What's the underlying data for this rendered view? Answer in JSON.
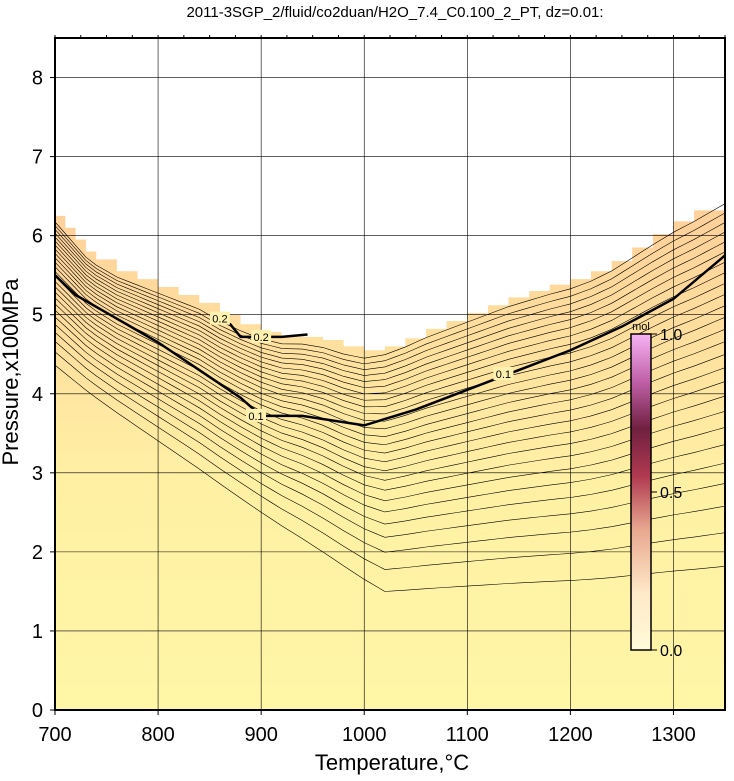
{
  "title": "2011-3SGP_2/fluid/co2duan/H2O_7.4_C0.100_2_PT, dz=0.01:",
  "chart_data": {
    "type": "heatmap",
    "title": "2011-3SGP_2/fluid/co2duan/H2O_7.4_C0.100_2_PT, dz=0.01:",
    "xlabel": "Temperature,°C",
    "ylabel": "Pressure,x100MPa",
    "xlim": [
      700,
      1350
    ],
    "ylim": [
      0,
      8.5
    ],
    "xticks": [
      "700",
      "800",
      "900",
      "1000",
      "1100",
      "1200",
      "1300"
    ],
    "yticks": [
      "0",
      "1",
      "2",
      "3",
      "4",
      "5",
      "6",
      "7",
      "8"
    ],
    "grid": true,
    "colorbar": {
      "unit": "mol",
      "range": [
        0.0,
        1.0
      ],
      "ticks": [
        "0.0",
        "0.5",
        "1.0"
      ],
      "colors": [
        "#ffffd0",
        "#ffe6bf",
        "#e8a090",
        "#b03050",
        "#701040",
        "#f7b3f4"
      ]
    },
    "colors": {
      "low_fill": "#fff6a6",
      "high_fill": "#ffd8a0",
      "contour": "#000000"
    },
    "boundary": {
      "x": [
        700,
        710,
        720,
        730,
        740,
        760,
        780,
        800,
        820,
        840,
        860,
        880,
        900,
        920,
        940,
        960,
        980,
        1000,
        1020,
        1040,
        1060,
        1080,
        1100,
        1120,
        1140,
        1160,
        1180,
        1200,
        1220,
        1240,
        1260,
        1280,
        1300,
        1320,
        1350
      ],
      "y": [
        6.25,
        6.1,
        5.95,
        5.8,
        5.7,
        5.55,
        5.45,
        5.35,
        5.25,
        5.15,
        5.0,
        4.88,
        4.78,
        4.72,
        4.72,
        4.68,
        4.6,
        4.55,
        4.6,
        4.7,
        4.82,
        4.92,
        5.02,
        5.12,
        5.22,
        5.3,
        5.38,
        5.45,
        5.55,
        5.68,
        5.85,
        6.02,
        6.18,
        6.32,
        6.55
      ]
    },
    "contours": [
      {
        "level": 0.1,
        "labels": [
          "0.1",
          "0.1"
        ],
        "x": [
          700,
          720,
          760,
          800,
          840,
          880,
          900,
          940,
          1000,
          1050,
          1100,
          1150,
          1200,
          1250,
          1300,
          1350
        ],
        "y": [
          5.5,
          5.25,
          4.95,
          4.65,
          4.3,
          3.95,
          3.72,
          3.72,
          3.6,
          3.8,
          4.05,
          4.3,
          4.55,
          4.85,
          5.2,
          5.75
        ]
      },
      {
        "level": 0.2,
        "labels": [
          "0.2",
          "0.2"
        ],
        "x": [
          855,
          870,
          880,
          920,
          945
        ],
        "y": [
          4.98,
          4.88,
          4.72,
          4.72,
          4.75
        ]
      }
    ]
  }
}
